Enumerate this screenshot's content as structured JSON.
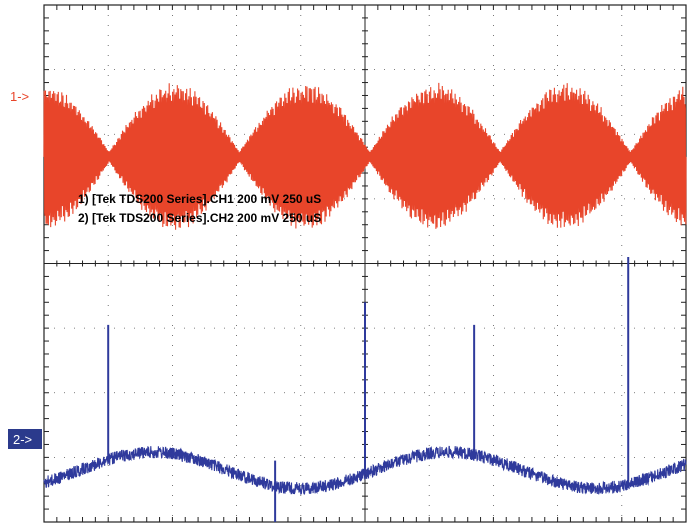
{
  "chart_data": {
    "type": "line",
    "title": "",
    "grid": true,
    "ticks": {
      "x_divisions": 10,
      "y_divisions": 8
    },
    "channels": [
      {
        "marker": "1->",
        "color": "#e8452a",
        "legend": "1) [Tek TDS200 Series].CH1",
        "volts_per_div": "200 mV",
        "time_per_div": "250 uS",
        "description": "amplitude-modulated carrier, approx 4.2 envelope periods across screen"
      },
      {
        "marker": "2->",
        "color": "#2f3a9c",
        "legend": "2) [Tek TDS200 Series].CH2",
        "volts_per_div": "200 mV",
        "time_per_div": "250 uS",
        "description": "slow sinusoid with noise, approx 2 periods, with narrow spikes"
      }
    ],
    "ch1_envelope_peaks_div": [
      0.0,
      2.0,
      4.1,
      6.1,
      8.1,
      10.0
    ],
    "ch1_envelope_nulls_div": [
      1.0,
      3.0,
      5.0,
      7.1,
      9.1
    ],
    "ch2_spikes": [
      {
        "t_div": 1.0,
        "direction": "up"
      },
      {
        "t_div": 3.6,
        "direction": "down"
      },
      {
        "t_div": 6.7,
        "direction": "up"
      },
      {
        "t_div": 9.1,
        "direction": "up"
      },
      {
        "t_div": 5.0,
        "direction": "up"
      }
    ]
  },
  "legend": {
    "line1": "1) [Tek TDS200 Series].CH1  200 mV   250 uS",
    "line2": "2) [Tek TDS200 Series].CH2  200 mV   250 uS"
  },
  "markers": {
    "ch1": "1->",
    "ch2": "2->"
  }
}
